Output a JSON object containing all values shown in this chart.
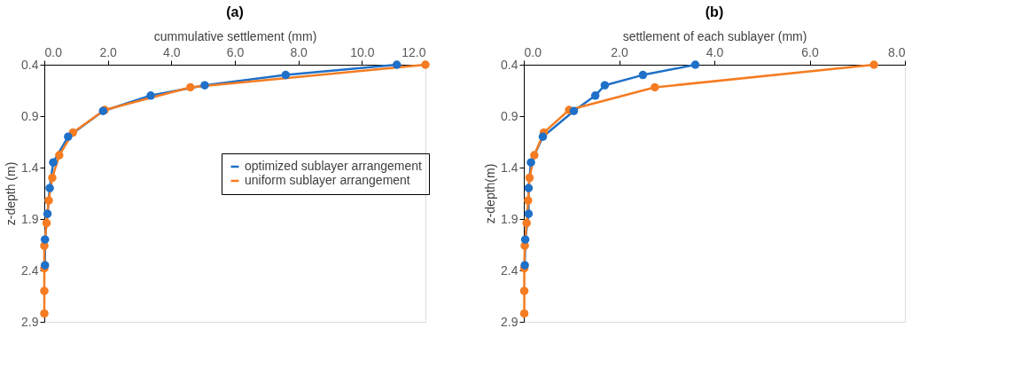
{
  "chart_data": [
    {
      "type": "line",
      "title": "(a)",
      "xlabel": "cummulative settlement (mm)",
      "ylabel": "z-depth (m)",
      "xlim": [
        0,
        12
      ],
      "xticks": [
        {
          "value": 0,
          "label": "0.0"
        },
        {
          "value": 2,
          "label": "2.0"
        },
        {
          "value": 4,
          "label": "4.0"
        },
        {
          "value": 6,
          "label": "6.0"
        },
        {
          "value": 8,
          "label": "8.0"
        },
        {
          "value": 10,
          "label": "10.0"
        },
        {
          "value": 12,
          "label": "12.0"
        }
      ],
      "ylim": [
        2.9,
        0.4
      ],
      "yticks": [
        0.4,
        0.9,
        1.4,
        1.9,
        2.4,
        2.9
      ],
      "legend": "right",
      "marker": "circle",
      "line_style": "solid",
      "grid": false,
      "series": [
        {
          "name": "optimized sublayer arrangement",
          "color": "#1f70c8",
          "x": [
            11.1,
            7.6,
            5.05,
            3.35,
            1.85,
            0.75,
            0.28,
            0.17,
            0.1,
            0.02,
            0.02
          ],
          "values": [
            0.4,
            0.5,
            0.6,
            0.7,
            0.85,
            1.1,
            1.35,
            1.6,
            1.85,
            2.1,
            2.35
          ]
        },
        {
          "name": "uniform sublayer arrangement",
          "color": "#f57c22",
          "x": [
            12.0,
            4.6,
            1.9,
            0.9,
            0.47,
            0.25,
            0.14,
            0.07,
            0.0,
            0.0,
            0.0,
            0.0
          ],
          "values": [
            0.4,
            0.62,
            0.84,
            1.06,
            1.28,
            1.5,
            1.72,
            1.94,
            2.16,
            2.38,
            2.6,
            2.82
          ]
        }
      ]
    },
    {
      "type": "line",
      "title": "(b)",
      "xlabel": "settlement of each sublayer (mm)",
      "ylabel": "z-depth(m)",
      "xlim": [
        0,
        8
      ],
      "xticks": [
        {
          "value": 0,
          "label": "0.0"
        },
        {
          "value": 2,
          "label": "2.0"
        },
        {
          "value": 4,
          "label": "4.0"
        },
        {
          "value": 6,
          "label": "6.0"
        },
        {
          "value": 8,
          "label": "8.0"
        }
      ],
      "ylim": [
        2.9,
        0.4
      ],
      "yticks": [
        0.4,
        0.9,
        1.4,
        1.9,
        2.4,
        2.9
      ],
      "legend": "bottom",
      "marker": "circle",
      "line_style": "solid",
      "grid": false,
      "series": [
        {
          "name": "optimized sublayer arrangement",
          "color": "#1f70c8",
          "x": [
            3.6,
            2.5,
            1.7,
            1.5,
            1.05,
            0.4,
            0.15,
            0.1,
            0.1,
            0.03,
            0.02
          ],
          "values": [
            0.4,
            0.5,
            0.6,
            0.7,
            0.85,
            1.1,
            1.35,
            1.6,
            1.85,
            2.1,
            2.35
          ]
        },
        {
          "name": "uniform sublayer arrangement",
          "color": "#f57c22",
          "x": [
            7.35,
            2.75,
            0.95,
            0.42,
            0.22,
            0.12,
            0.09,
            0.06,
            0.02,
            0.01,
            0.01,
            0.01
          ],
          "values": [
            0.4,
            0.62,
            0.84,
            1.06,
            1.28,
            1.5,
            1.72,
            1.94,
            2.16,
            2.38,
            2.6,
            2.82
          ]
        }
      ]
    }
  ]
}
